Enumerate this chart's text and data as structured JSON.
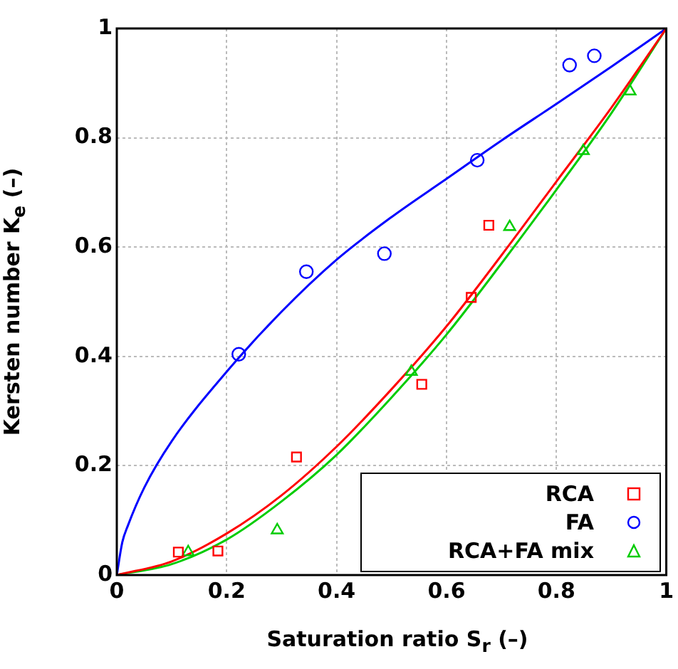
{
  "chart_data": {
    "type": "scatter",
    "xlabel": "Saturation ratio S$_{r}$ (–)",
    "ylabel": "Kersten number K$_{e}$ (–)",
    "xlim": [
      0,
      1
    ],
    "ylim": [
      0,
      1
    ],
    "xticks": [
      0,
      0.2,
      0.4,
      0.6,
      0.8,
      1
    ],
    "yticks": [
      0,
      0.2,
      0.4,
      0.6,
      0.8,
      1
    ],
    "grid": true,
    "legend": "bottom right",
    "series": [
      {
        "name": "RCA",
        "type": "scatter",
        "marker": "square",
        "color": "#ff0000",
        "x": [
          0.112,
          0.184,
          0.327,
          0.555,
          0.645,
          0.677
        ],
        "values": [
          0.042,
          0.044,
          0.216,
          0.349,
          0.508,
          0.64
        ]
      },
      {
        "name": "FA",
        "type": "scatter",
        "marker": "circle",
        "color": "#0000ff",
        "x": [
          0.222,
          0.345,
          0.487,
          0.656,
          0.824,
          0.869
        ],
        "values": [
          0.404,
          0.555,
          0.588,
          0.759,
          0.933,
          0.95
        ]
      },
      {
        "name": "RCA+FA mix",
        "type": "scatter",
        "marker": "triangle",
        "color": "#00cc00",
        "x": [
          0.13,
          0.292,
          0.536,
          0.715,
          0.849,
          0.934
        ],
        "values": [
          0.042,
          0.082,
          0.372,
          0.637,
          0.776,
          0.885
        ]
      },
      {
        "type": "line",
        "marker": "none",
        "color": "#ff0000",
        "x": [
          0,
          0.1,
          0.2,
          0.3,
          0.4,
          0.5,
          0.6,
          0.7,
          0.8,
          0.9,
          1
        ],
        "values": [
          0,
          0.025,
          0.076,
          0.146,
          0.235,
          0.34,
          0.455,
          0.585,
          0.72,
          0.855,
          1
        ]
      },
      {
        "type": "line",
        "marker": "none",
        "color": "#0000ff",
        "x": [
          0,
          0.01,
          0.02,
          0.05,
          0.1,
          0.2,
          0.3,
          0.4,
          0.5,
          0.6,
          0.7,
          0.8,
          0.9,
          1
        ],
        "values": [
          0,
          0.06,
          0.09,
          0.16,
          0.245,
          0.372,
          0.482,
          0.577,
          0.655,
          0.725,
          0.795,
          0.862,
          0.93,
          1
        ]
      },
      {
        "type": "line",
        "marker": "none",
        "color": "#00cc00",
        "x": [
          0,
          0.1,
          0.2,
          0.3,
          0.4,
          0.5,
          0.6,
          0.7,
          0.8,
          0.9,
          1
        ],
        "values": [
          0,
          0.02,
          0.065,
          0.135,
          0.22,
          0.325,
          0.44,
          0.57,
          0.705,
          0.845,
          1
        ]
      }
    ]
  }
}
